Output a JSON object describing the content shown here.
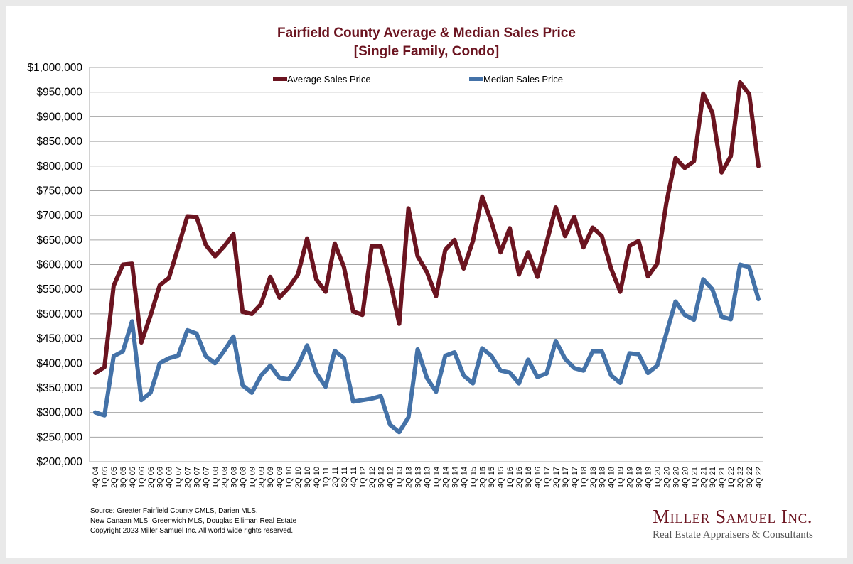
{
  "chart_data": {
    "type": "line",
    "title": "Fairfield County Average & Median Sales Price",
    "subtitle": "[Single Family, Condo]",
    "categories": [
      "4Q 04",
      "1Q 05",
      "2Q 05",
      "3Q 05",
      "4Q 05",
      "1Q 06",
      "2Q 06",
      "3Q 06",
      "4Q 06",
      "1Q 07",
      "2Q 07",
      "3Q 07",
      "4Q 07",
      "1Q 08",
      "2Q 08",
      "3Q 08",
      "4Q 08",
      "1Q 09",
      "2Q 09",
      "3Q 09",
      "4Q 09",
      "1Q 10",
      "2Q 10",
      "3Q 10",
      "4Q 10",
      "1Q 11",
      "2Q 11",
      "3Q 11",
      "4Q 11",
      "1Q 12",
      "2Q 12",
      "3Q 12",
      "4Q 12",
      "1Q 13",
      "2Q 13",
      "3Q 13",
      "4Q 13",
      "1Q 14",
      "2Q 14",
      "3Q 14",
      "4Q 14",
      "1Q 15",
      "2Q 15",
      "3Q 15",
      "4Q 15",
      "1Q 16",
      "2Q 16",
      "3Q 16",
      "4Q 16",
      "1Q 17",
      "2Q 17",
      "3Q 17",
      "4Q 17",
      "1Q 18",
      "2Q 18",
      "3Q 18",
      "4Q 18",
      "1Q 19",
      "2Q 19",
      "3Q 19",
      "4Q 19",
      "1Q 20",
      "2Q 20",
      "3Q 20",
      "4Q 20",
      "1Q 21",
      "2Q 21",
      "3Q 21",
      "4Q 21",
      "1Q 22",
      "2Q 22",
      "3Q 22",
      "4Q 22"
    ],
    "series": [
      {
        "name": "Average Sales Price",
        "color": "#6b1420",
        "values": [
          380000,
          392000,
          557000,
          600000,
          602000,
          442000,
          497000,
          558000,
          573000,
          635000,
          698000,
          697000,
          640000,
          617000,
          637000,
          662000,
          504000,
          500000,
          520000,
          575000,
          533000,
          553000,
          580000,
          653000,
          570000,
          545000,
          643000,
          595000,
          505000,
          498000,
          637000,
          637000,
          567000,
          480000,
          714000,
          617000,
          585000,
          536000,
          630000,
          650000,
          592000,
          648000,
          738000,
          687000,
          625000,
          674000,
          580000,
          625000,
          575000,
          645000,
          716000,
          658000,
          697000,
          635000,
          675000,
          658000,
          592000,
          545000,
          638000,
          648000,
          576000,
          602000,
          725000,
          816000,
          796000,
          810000,
          947000,
          908000,
          787000,
          820000,
          970000,
          946000,
          800000
        ]
      },
      {
        "name": "Median Sales Price",
        "color": "#4472a8",
        "values": [
          300000,
          294000,
          414000,
          424000,
          485000,
          325000,
          340000,
          400000,
          410000,
          415000,
          467000,
          460000,
          414000,
          400000,
          425000,
          454000,
          355000,
          340000,
          375000,
          395000,
          370000,
          367000,
          395000,
          436000,
          380000,
          352000,
          425000,
          410000,
          322000,
          325000,
          328000,
          333000,
          275000,
          260000,
          290000,
          428000,
          370000,
          342000,
          415000,
          422000,
          375000,
          359000,
          430000,
          415000,
          385000,
          381000,
          359000,
          407000,
          372000,
          379000,
          445000,
          409000,
          390000,
          385000,
          424000,
          424000,
          375000,
          360000,
          420000,
          418000,
          380000,
          395000,
          460000,
          525000,
          498000,
          488000,
          570000,
          550000,
          494000,
          489000,
          600000,
          595000,
          530000
        ]
      }
    ],
    "ylim": [
      200000,
      1000000
    ],
    "yticks": [
      1000000,
      950000,
      900000,
      850000,
      800000,
      750000,
      700000,
      650000,
      600000,
      550000,
      500000,
      450000,
      400000,
      350000,
      300000,
      250000,
      200000
    ],
    "ytick_labels": [
      "$1,000,000",
      "$950,000",
      "$900,000",
      "$850,000",
      "$800,000",
      "$750,000",
      "$700,000",
      "$650,000",
      "$600,000",
      "$550,000",
      "$500,000",
      "$450,000",
      "$400,000",
      "$350,000",
      "$300,000",
      "$250,000",
      "$200,000"
    ],
    "legend": "top",
    "grid": true
  },
  "footer": {
    "source_line1": "Source:  Greater Fairfield County CMLS, Darien MLS,",
    "source_line2": "New Canaan MLS, Greenwich MLS, Douglas Elliman Real Estate",
    "copyright": "Copyright 2023 Miller Samuel Inc.  All world wide rights reserved."
  },
  "logo": {
    "name": "Miller Samuel Inc.",
    "tagline": "Real Estate Appraisers & Consultants"
  }
}
